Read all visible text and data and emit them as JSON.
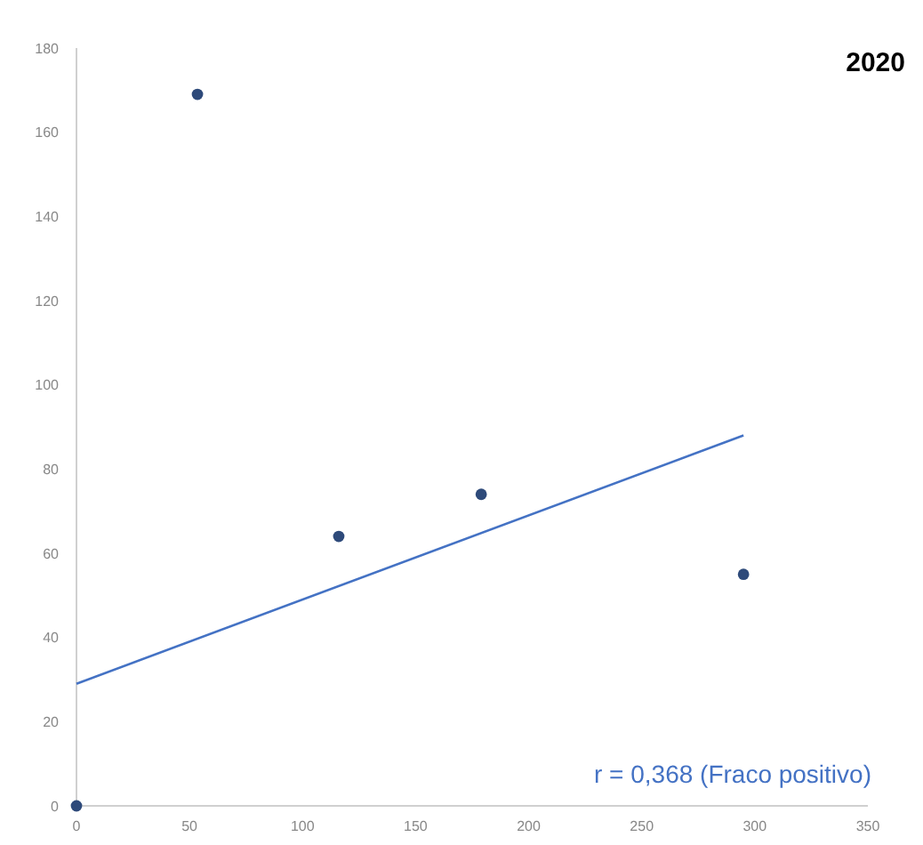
{
  "chart_data": {
    "type": "scatter",
    "title": "2020",
    "series": [
      {
        "color": "#2e4a7a",
        "marker": "circle",
        "x": [
          0,
          53.5,
          116,
          179,
          295
        ],
        "values": [
          0,
          169,
          64,
          74,
          55
        ]
      },
      {
        "type": "line",
        "marker": "none",
        "color": "#4472c4",
        "x": [
          0,
          295
        ],
        "values": [
          29,
          88
        ]
      }
    ],
    "xlim": [
      0,
      350
    ],
    "xticks": [
      0,
      50,
      100,
      150,
      200,
      250,
      300,
      350
    ],
    "ylim": [
      0,
      180
    ],
    "yticks": [
      0,
      20,
      40,
      60,
      80,
      100,
      120,
      140,
      160,
      180
    ],
    "annotations": [
      "r = 0,368 (Fraco positivo)"
    ],
    "grid": false
  }
}
